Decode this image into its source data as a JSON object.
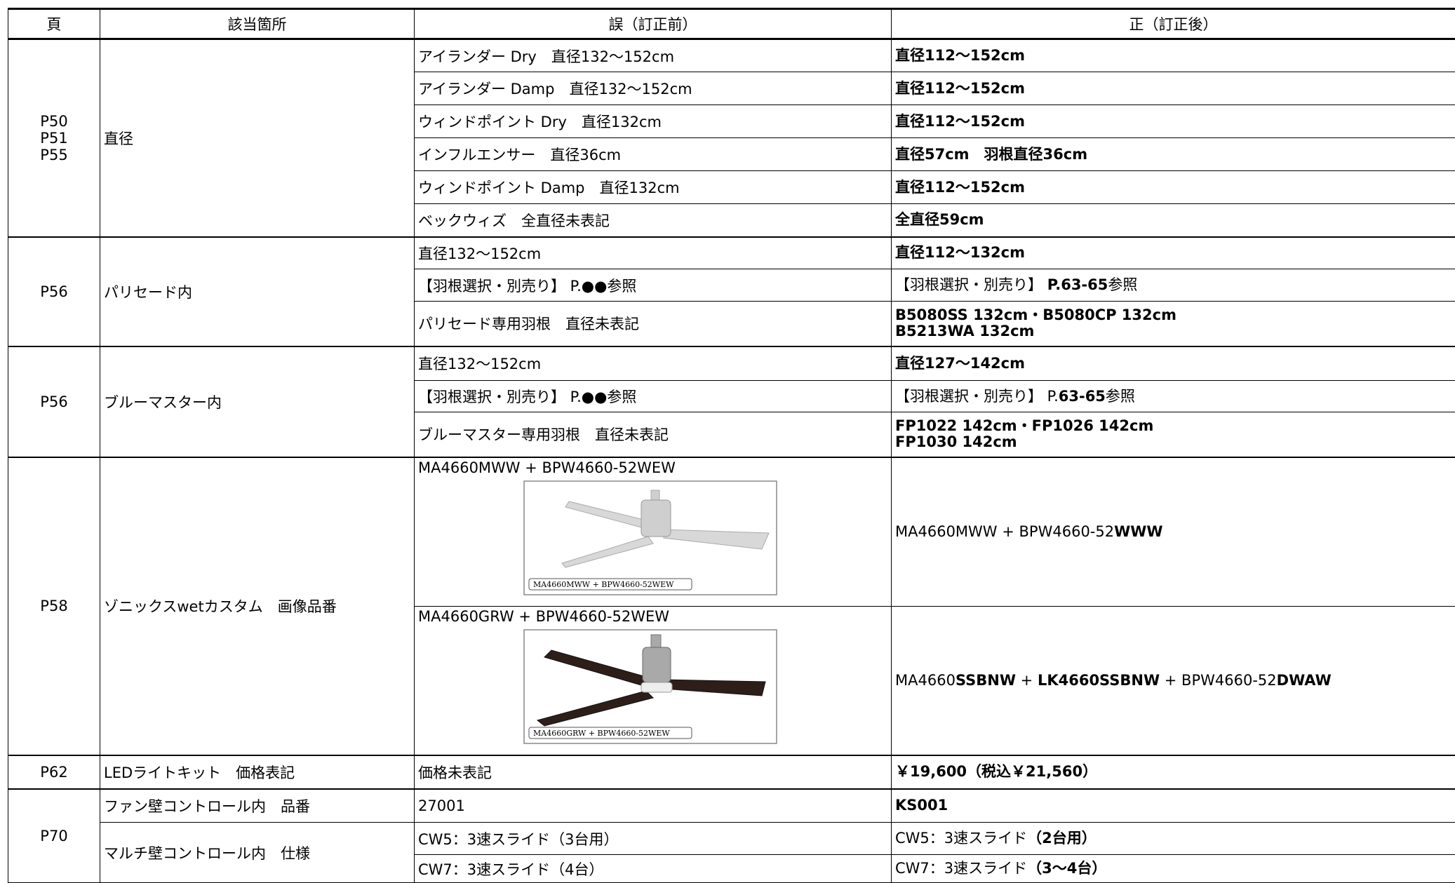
{
  "header": [
    "頁",
    "該当箇所",
    "誤（訂正前）",
    "正（訂正後）"
  ],
  "groups": [
    {
      "pages": [
        "P50",
        "P51",
        "P55"
      ],
      "sections": [
        {
          "location": "直径",
          "rows": [
            {
              "before": "アイランダー Dry　直径132～152cm",
              "after": [
                {
                  "text": "直径112～152cm",
                  "bold": true
                }
              ]
            },
            {
              "before": "アイランダー Damp　直径132～152cm",
              "after": [
                {
                  "text": "直径112～152cm",
                  "bold": true
                }
              ]
            },
            {
              "before": "ウィンドポイント Dry　直径132cm",
              "after": [
                {
                  "text": "直径112～152cm",
                  "bold": true
                }
              ]
            },
            {
              "before": "インフルエンサー　直径36cm",
              "after": [
                {
                  "text": "直径57cm　羽根直径36cm",
                  "bold": true
                }
              ]
            },
            {
              "before": "ウィンドポイント Damp　直径132cm",
              "after": [
                {
                  "text": "直径112～152cm",
                  "bold": true
                }
              ]
            },
            {
              "before": "ベックウィズ　全直径未表記",
              "after": [
                {
                  "text": "全直径59cm",
                  "bold": true
                }
              ]
            }
          ]
        }
      ]
    },
    {
      "pages": [
        "P56"
      ],
      "sections": [
        {
          "location": "パリセード内",
          "rows": [
            {
              "before": "直径132～152cm",
              "after": [
                {
                  "text": "直径112～132cm",
                  "bold": true
                }
              ]
            },
            {
              "before": "【羽根選択・別売り】 P.●●参照",
              "after": [
                {
                  "text": "【羽根選択・別売り】 ",
                  "bold": false
                },
                {
                  "text": "P.63-65",
                  "bold": true
                },
                {
                  "text": "参照",
                  "bold": false
                }
              ]
            },
            {
              "before": "パリセード専用羽根　直径未表記",
              "after": [
                {
                  "text": "B5080SS 132cm・B5080CP 132cm\nB5213WA 132cm",
                  "bold": true
                }
              ]
            }
          ]
        }
      ]
    },
    {
      "pages": [
        "P56"
      ],
      "sections": [
        {
          "location": "ブルーマスター内",
          "rows": [
            {
              "before": "直径132～152cm",
              "after": [
                {
                  "text": "直径127～142cm",
                  "bold": true
                }
              ]
            },
            {
              "before": "【羽根選択・別売り】 P.●●参照",
              "after": [
                {
                  "text": "【羽根選択・別売り】 P.",
                  "bold": false
                },
                {
                  "text": "63-65",
                  "bold": true
                },
                {
                  "text": "参照",
                  "bold": false
                }
              ]
            },
            {
              "before": "ブルーマスター専用羽根　直径未表記",
              "after": [
                {
                  "text": "FP1022 142cm・FP1026 142cm\nFP1030 142cm",
                  "bold": true
                }
              ]
            }
          ]
        }
      ]
    },
    {
      "pages": [
        "P58"
      ],
      "sections": [
        {
          "location": "ゾニックスwetカスタム　画像品番",
          "rows": [
            {
              "before": "MA4660MWW + BPW4660-52WEW",
              "image_caption": "MA4660MWW + BPW4660-52WEW",
              "after": [
                {
                  "text": "MA4660MWW + BPW4660-52",
                  "bold": false
                },
                {
                  "text": "WWW",
                  "bold": true
                }
              ]
            },
            {
              "before": "MA4660GRW + BPW4660-52WEW",
              "image_caption": "MA4660GRW + BPW4660-52WEW",
              "after": [
                {
                  "text": "MA4660",
                  "bold": false
                },
                {
                  "text": "SSBNW",
                  "bold": true
                },
                {
                  "text": " + ",
                  "bold": false
                },
                {
                  "text": "LK4660SSBNW",
                  "bold": true
                },
                {
                  "text": " + BPW4660-52",
                  "bold": false
                },
                {
                  "text": "DWAW",
                  "bold": true
                }
              ]
            }
          ]
        }
      ]
    },
    {
      "pages": [
        "P62"
      ],
      "sections": [
        {
          "location": "LEDライトキット　価格表記",
          "rows": [
            {
              "before": "価格未表記",
              "after": [
                {
                  "text": "￥19,600（税込￥21,560）",
                  "bold": true
                }
              ]
            }
          ]
        }
      ]
    },
    {
      "pages": [
        "P70"
      ],
      "sections": [
        {
          "location": "ファン壁コントロール内　品番",
          "rows": [
            {
              "before": "27001",
              "after": [
                {
                  "text": "KS001",
                  "bold": true
                }
              ]
            }
          ]
        },
        {
          "location": "マルチ壁コントロール内　仕様",
          "rows": [
            {
              "before": "CW5：3速スライド（3台用）",
              "after": [
                {
                  "text": "CW5：3速スライド",
                  "bold": false
                },
                {
                  "text": "（2台用）",
                  "bold": true
                }
              ]
            },
            {
              "before": "CW7：3速スライド（4台）",
              "after": [
                {
                  "text": "CW7：3速スライド",
                  "bold": false
                },
                {
                  "text": "（3～4台）",
                  "bold": true
                }
              ]
            }
          ]
        }
      ]
    }
  ]
}
